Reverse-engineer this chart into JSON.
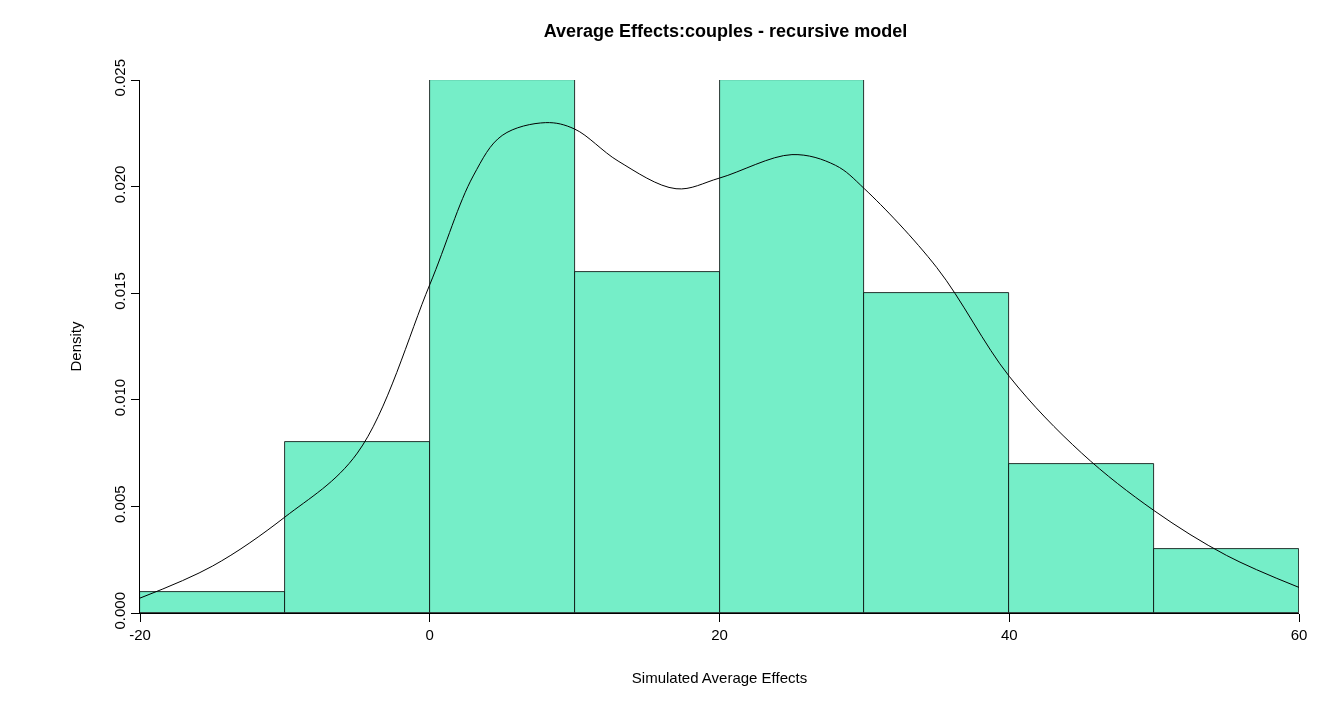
{
  "chart_data": {
    "type": "histogram",
    "title": "Average Effects:couples - recursive model",
    "xlabel": "Simulated Average Effects",
    "ylabel": "Density",
    "bins": [
      -20,
      -10,
      0,
      10,
      20,
      30,
      40,
      50,
      60
    ],
    "values": [
      0.001,
      0.008,
      0.025,
      0.016,
      0.025,
      0.015,
      0.007,
      0.003
    ],
    "color": "#75eec8",
    "series": [
      {
        "type": "line",
        "color": "#000000",
        "x": [
          -20,
          -15,
          -10,
          -5,
          0,
          3,
          5,
          8,
          10,
          13,
          17,
          20,
          25,
          28,
          30,
          35,
          40,
          45,
          50,
          55,
          60
        ],
        "values": [
          0.0007,
          0.0022,
          0.0045,
          0.0075,
          0.0154,
          0.0205,
          0.0224,
          0.023,
          0.0227,
          0.0212,
          0.0199,
          0.0204,
          0.0215,
          0.021,
          0.0199,
          0.0162,
          0.0111,
          0.0075,
          0.0048,
          0.0027,
          0.0012
        ]
      }
    ],
    "xlim": [
      -20,
      60
    ],
    "ylim": [
      0,
      0.025
    ],
    "xticks": [
      -20,
      0,
      20,
      40,
      60
    ],
    "yticks": [
      {
        "value": 0,
        "label": "0.000"
      },
      {
        "value": 0.005,
        "label": "0.005"
      },
      {
        "value": 0.01,
        "label": "0.010"
      },
      {
        "value": 0.015,
        "label": "0.015"
      },
      {
        "value": 0.02,
        "label": "0.020"
      },
      {
        "value": 0.025,
        "label": "0.025"
      }
    ],
    "grid": false
  }
}
